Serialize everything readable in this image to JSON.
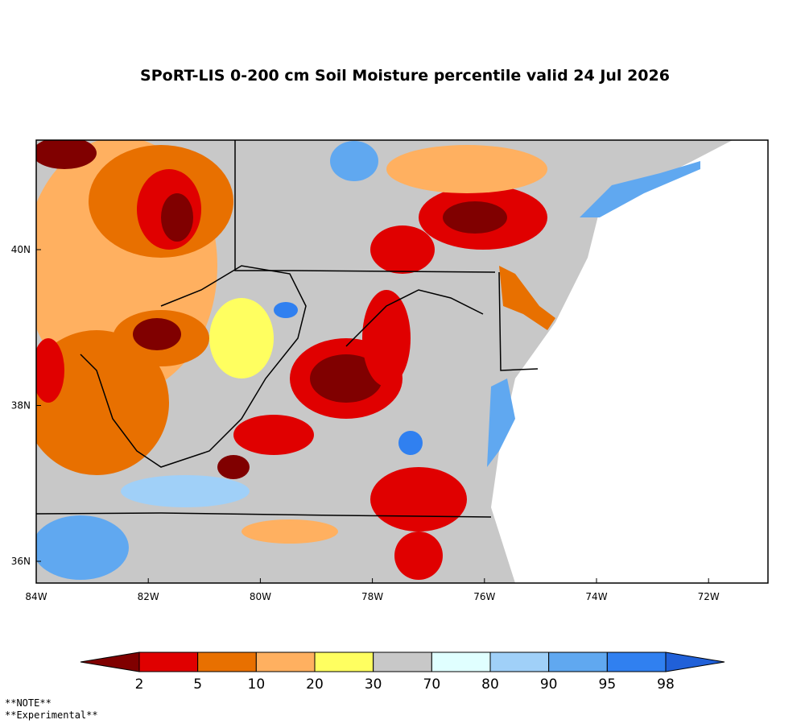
{
  "title": "SPoRT-LIS 0-200 cm Soil Moisture percentile valid 24 Jul 2026",
  "lon_labels": [
    "84W",
    "82W",
    "80W",
    "78W",
    "76W",
    "74W",
    "72W"
  ],
  "lat_labels": [
    "40N",
    "38N",
    "36N"
  ],
  "legend": {
    "ticks": [
      "2",
      "5",
      "10",
      "20",
      "30",
      "70",
      "80",
      "90",
      "95",
      "98"
    ],
    "colors": [
      "#800000",
      "#e00000",
      "#e87000",
      "#ffb060",
      "#ffff60",
      "#c8c8c8",
      "#e0ffff",
      "#a0d0f8",
      "#60a8f0",
      "#3080f0",
      "#2060d8"
    ]
  },
  "notes": [
    "**NOTE**",
    "**Experimental**"
  ]
}
